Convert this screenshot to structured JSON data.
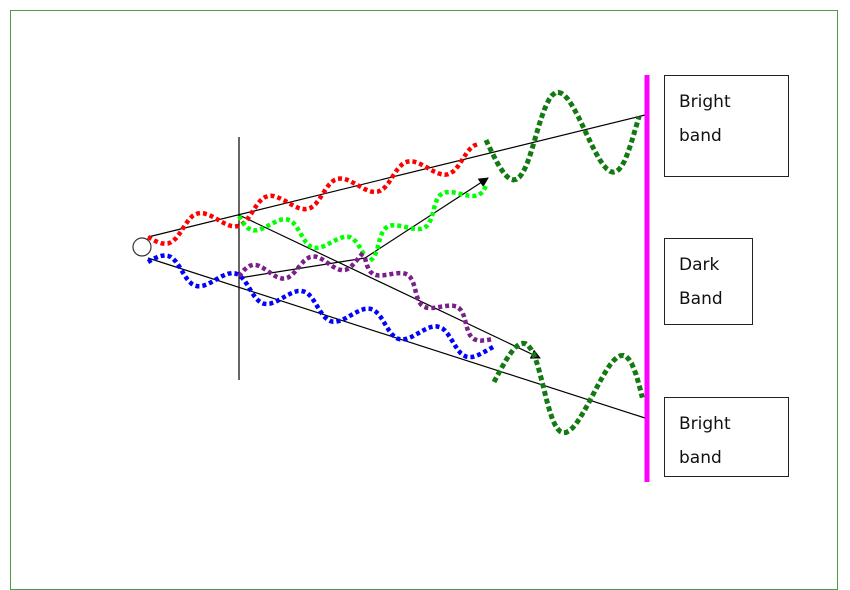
{
  "labels": {
    "top": {
      "line1": "Bright",
      "line2": "band"
    },
    "middle": {
      "line1": "Dark",
      "line2": "Band"
    },
    "bottom": {
      "line1": "Bright",
      "line2": "band"
    }
  },
  "colors": {
    "frame": "#4c9a4c",
    "screen": "#ff00ff",
    "wave_red": "#ff0000",
    "wave_green": "#00ff00",
    "wave_blue": "#0000ff",
    "wave_purple": "#7b1f8a",
    "wave_dark_green": "#137a13",
    "ray": "#000000"
  }
}
